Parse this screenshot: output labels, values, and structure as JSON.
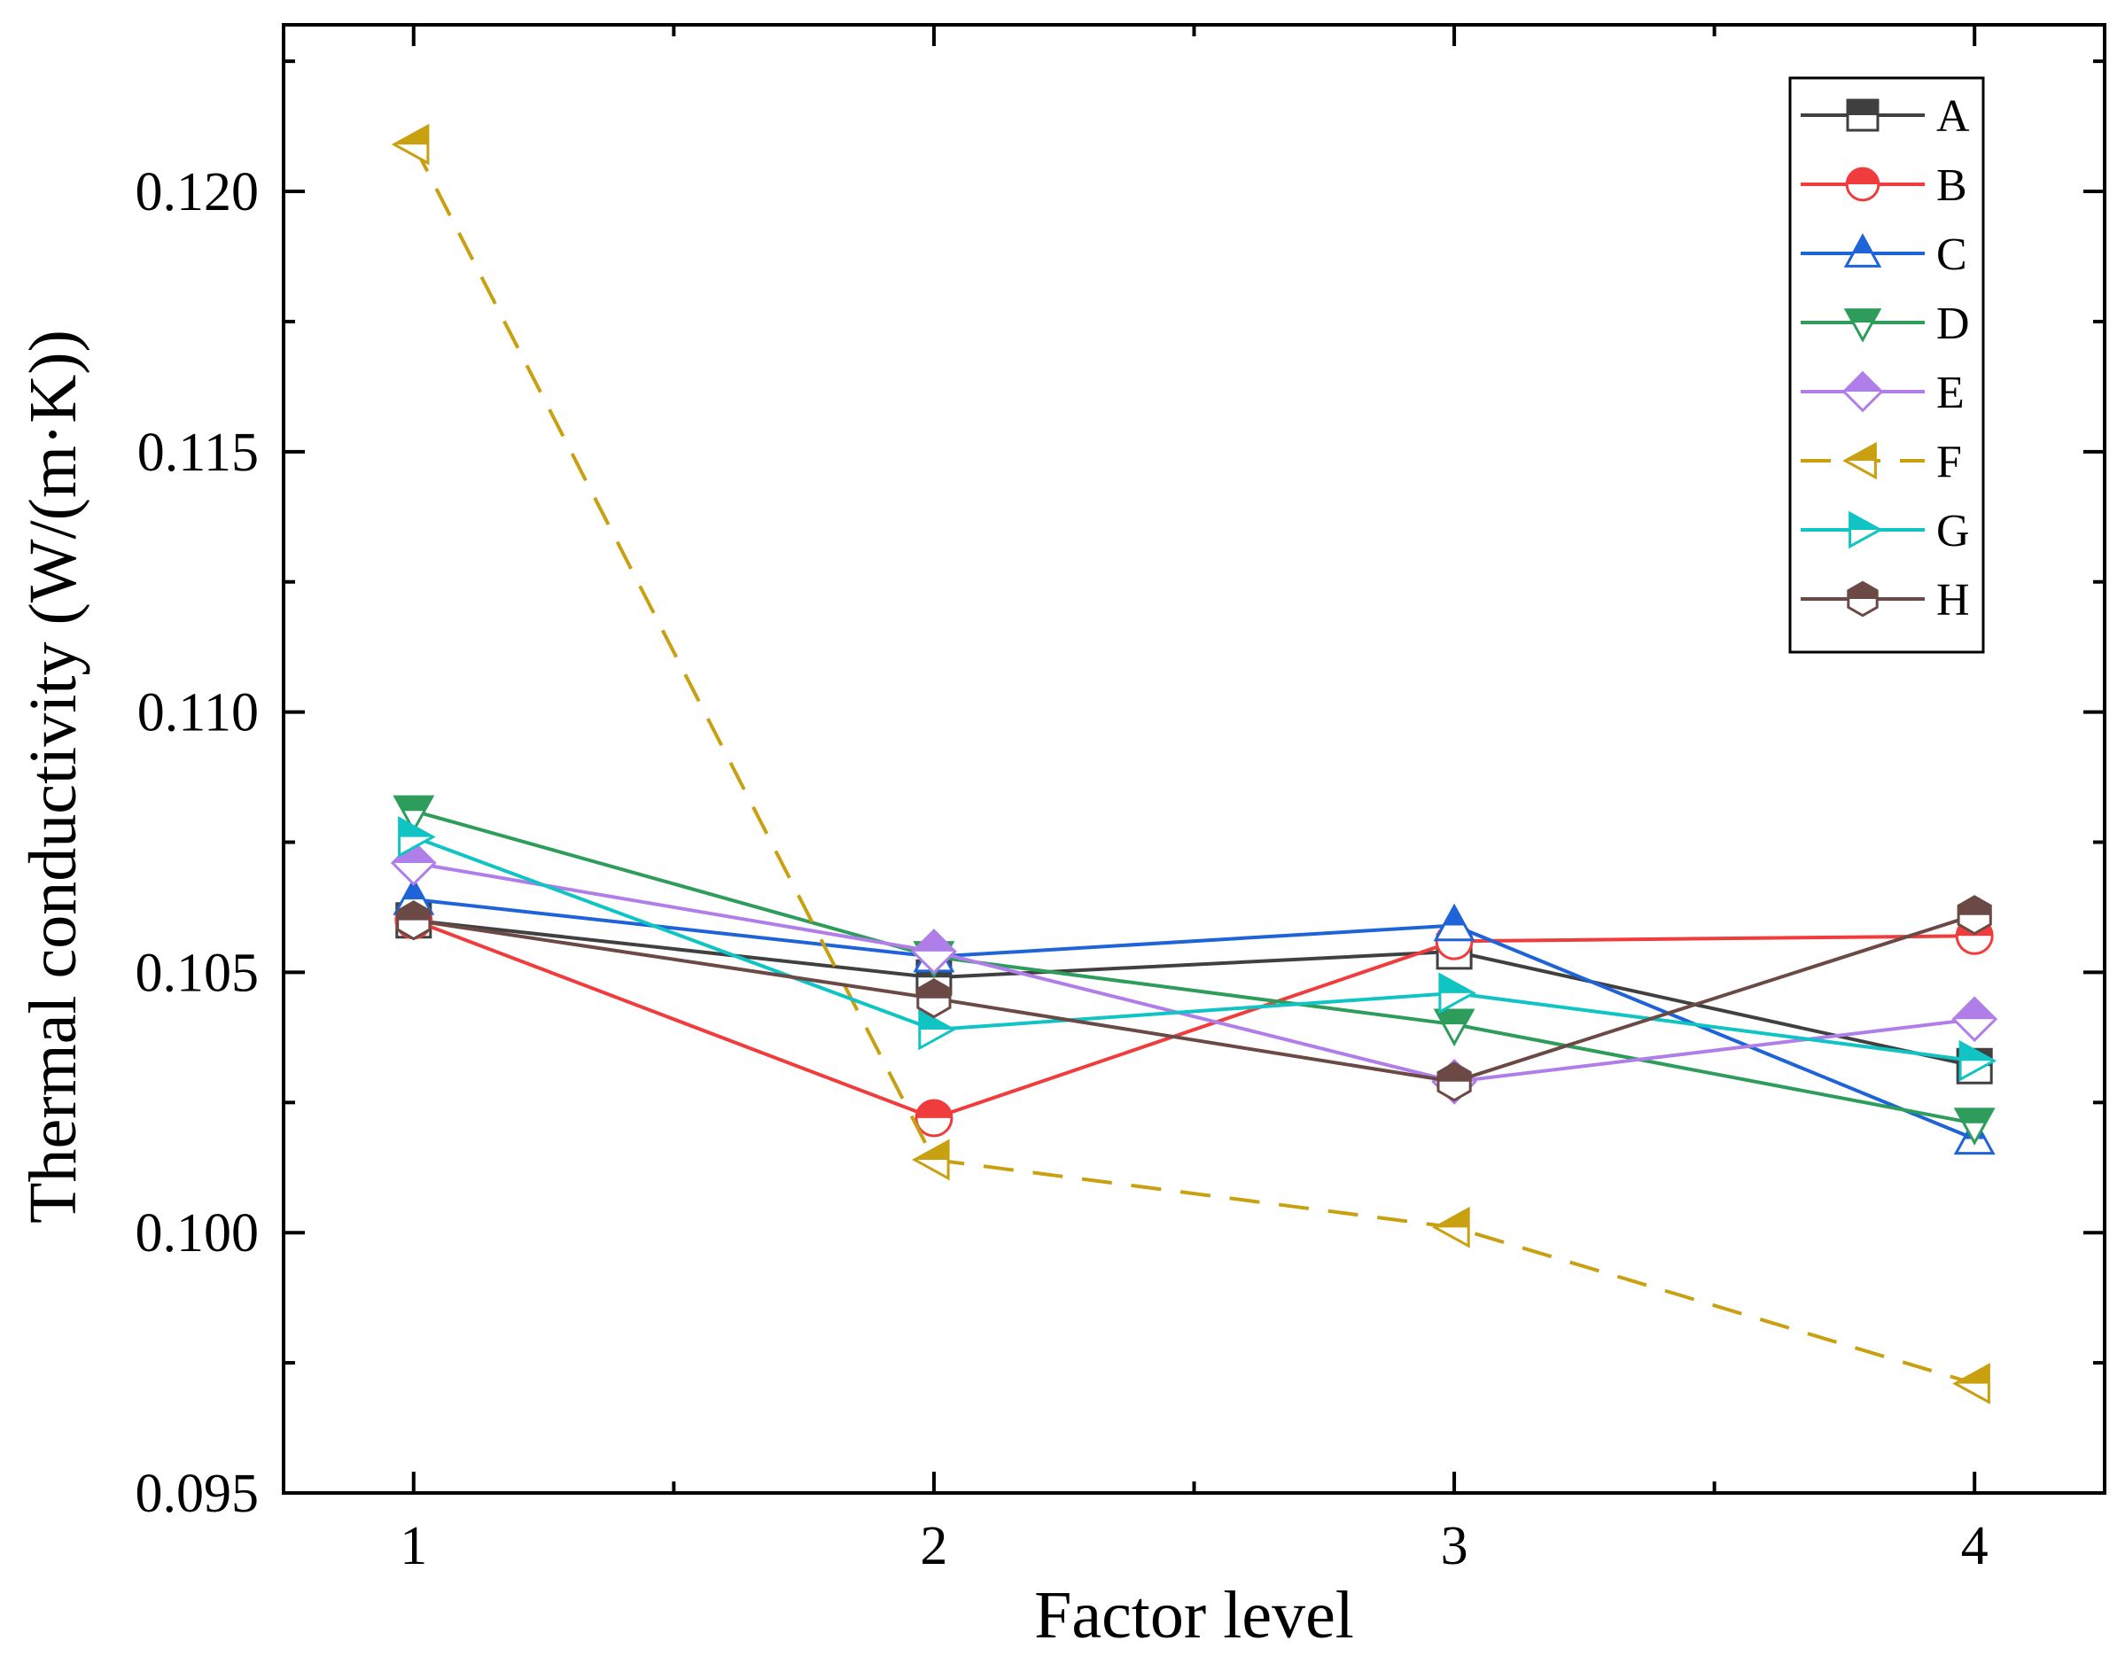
{
  "chart_data": {
    "type": "line",
    "title": "",
    "xlabel": "Factor level",
    "ylabel": "Thermal conductivity (W/(m·K))",
    "x": [
      1,
      2,
      3,
      4
    ],
    "x_tick_labels": [
      "1",
      "2",
      "3",
      "4"
    ],
    "xlim": [
      0.75,
      4.25
    ],
    "ylim": [
      0.095,
      0.1232
    ],
    "y_ticks": [
      0.095,
      0.1,
      0.105,
      0.11,
      0.115,
      0.12
    ],
    "y_tick_labels": [
      "0.095",
      "0.100",
      "0.105",
      "0.110",
      "0.115",
      "0.120"
    ],
    "grid": false,
    "legend_position": "top-right",
    "series": [
      {
        "name": "A",
        "color": "#404040",
        "marker": "square",
        "dash": "solid",
        "values": [
          0.106,
          0.1049,
          0.1054,
          0.1032
        ]
      },
      {
        "name": "B",
        "color": "#f03c3c",
        "marker": "circle",
        "dash": "solid",
        "values": [
          0.106,
          0.1022,
          0.1056,
          0.1057
        ]
      },
      {
        "name": "C",
        "color": "#1f63d8",
        "marker": "triangle-up",
        "dash": "solid",
        "values": [
          0.1064,
          0.1053,
          0.1059,
          0.1018
        ]
      },
      {
        "name": "D",
        "color": "#2e9c5a",
        "marker": "triangle-down",
        "dash": "solid",
        "values": [
          0.1081,
          0.1053,
          0.104,
          0.1021
        ]
      },
      {
        "name": "E",
        "color": "#b07ee8",
        "marker": "diamond",
        "dash": "solid",
        "values": [
          0.1071,
          0.1054,
          0.1029,
          0.1041
        ]
      },
      {
        "name": "F",
        "color": "#c8a010",
        "marker": "triangle-left",
        "dash": "dashed",
        "values": [
          0.1209,
          0.1014,
          0.1001,
          0.0971
        ]
      },
      {
        "name": "G",
        "color": "#10c4c4",
        "marker": "triangle-right",
        "dash": "solid",
        "values": [
          0.1076,
          0.1039,
          0.1046,
          0.1033
        ]
      },
      {
        "name": "H",
        "color": "#6b4a45",
        "marker": "hexagon",
        "dash": "solid",
        "values": [
          0.106,
          0.1045,
          0.1029,
          0.1061
        ]
      }
    ]
  }
}
